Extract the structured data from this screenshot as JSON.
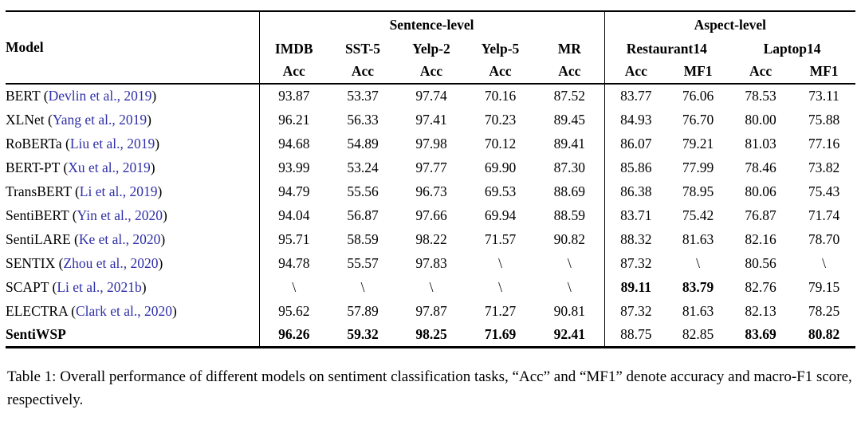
{
  "colors": {
    "background": "#ffffff",
    "text": "#000000",
    "citation_link": "#2f2fa8"
  },
  "table": {
    "header": {
      "model": "Model",
      "groups": [
        {
          "label": "Sentence-level",
          "span": 5
        },
        {
          "label": "Aspect-level",
          "span": 4
        }
      ],
      "datasets": [
        {
          "label": "IMDB",
          "span": 1
        },
        {
          "label": "SST-5",
          "span": 1
        },
        {
          "label": "Yelp-2",
          "span": 1
        },
        {
          "label": "Yelp-5",
          "span": 1
        },
        {
          "label": "MR",
          "span": 1
        },
        {
          "label": "Restaurant14",
          "span": 2
        },
        {
          "label": "Laptop14",
          "span": 2
        }
      ],
      "metrics": [
        "Acc",
        "Acc",
        "Acc",
        "Acc",
        "Acc",
        "Acc",
        "MF1",
        "Acc",
        "MF1"
      ]
    },
    "rows": [
      {
        "model": "BERT",
        "model_bold": false,
        "citation": "Devlin et al., 2019",
        "values": [
          "93.87",
          "53.37",
          "97.74",
          "70.16",
          "87.52",
          "83.77",
          "76.06",
          "78.53",
          "73.11"
        ],
        "bold": [
          false,
          false,
          false,
          false,
          false,
          false,
          false,
          false,
          false
        ]
      },
      {
        "model": "XLNet",
        "model_bold": false,
        "citation": "Yang et al., 2019",
        "values": [
          "96.21",
          "56.33",
          "97.41",
          "70.23",
          "89.45",
          "84.93",
          "76.70",
          "80.00",
          "75.88"
        ],
        "bold": [
          false,
          false,
          false,
          false,
          false,
          false,
          false,
          false,
          false
        ]
      },
      {
        "model": "RoBERTa",
        "model_bold": false,
        "citation": "Liu et al., 2019",
        "values": [
          "94.68",
          "54.89",
          "97.98",
          "70.12",
          "89.41",
          "86.07",
          "79.21",
          "81.03",
          "77.16"
        ],
        "bold": [
          false,
          false,
          false,
          false,
          false,
          false,
          false,
          false,
          false
        ]
      },
      {
        "model": "BERT-PT",
        "model_bold": false,
        "citation": "Xu et al., 2019",
        "values": [
          "93.99",
          "53.24",
          "97.77",
          "69.90",
          "87.30",
          "85.86",
          "77.99",
          "78.46",
          "73.82"
        ],
        "bold": [
          false,
          false,
          false,
          false,
          false,
          false,
          false,
          false,
          false
        ]
      },
      {
        "model": "TransBERT",
        "model_bold": false,
        "citation": "Li et al., 2019",
        "values": [
          "94.79",
          "55.56",
          "96.73",
          "69.53",
          "88.69",
          "86.38",
          "78.95",
          "80.06",
          "75.43"
        ],
        "bold": [
          false,
          false,
          false,
          false,
          false,
          false,
          false,
          false,
          false
        ]
      },
      {
        "model": "SentiBERT",
        "model_bold": false,
        "citation": "Yin et al., 2020",
        "values": [
          "94.04",
          "56.87",
          "97.66",
          "69.94",
          "88.59",
          "83.71",
          "75.42",
          "76.87",
          "71.74"
        ],
        "bold": [
          false,
          false,
          false,
          false,
          false,
          false,
          false,
          false,
          false
        ]
      },
      {
        "model": "SentiLARE",
        "model_bold": false,
        "citation": "Ke et al., 2020",
        "values": [
          "95.71",
          "58.59",
          "98.22",
          "71.57",
          "90.82",
          "88.32",
          "81.63",
          "82.16",
          "78.70"
        ],
        "bold": [
          false,
          false,
          false,
          false,
          false,
          false,
          false,
          false,
          false
        ]
      },
      {
        "model": "SENTIX",
        "model_bold": false,
        "citation": "Zhou et al., 2020",
        "values": [
          "94.78",
          "55.57",
          "97.83",
          "\\",
          "\\",
          "87.32",
          "\\",
          "80.56",
          "\\"
        ],
        "bold": [
          false,
          false,
          false,
          false,
          false,
          false,
          false,
          false,
          false
        ]
      },
      {
        "model": "SCAPT",
        "model_bold": false,
        "citation": "Li et al., 2021b",
        "values": [
          "\\",
          "\\",
          "\\",
          "\\",
          "\\",
          "89.11",
          "83.79",
          "82.76",
          "79.15"
        ],
        "bold": [
          false,
          false,
          false,
          false,
          false,
          true,
          true,
          false,
          false
        ]
      },
      {
        "model": "ELECTRA",
        "model_bold": false,
        "citation": "Clark et al., 2020",
        "values": [
          "95.62",
          "57.89",
          "97.87",
          "71.27",
          "90.81",
          "87.32",
          "81.63",
          "82.13",
          "78.25"
        ],
        "bold": [
          false,
          false,
          false,
          false,
          false,
          false,
          false,
          false,
          false
        ]
      },
      {
        "model": "SentiWSP",
        "model_bold": true,
        "citation": "",
        "values": [
          "96.26",
          "59.32",
          "98.25",
          "71.69",
          "92.41",
          "88.75",
          "82.85",
          "83.69",
          "80.82"
        ],
        "bold": [
          true,
          true,
          true,
          true,
          true,
          false,
          false,
          true,
          true
        ]
      }
    ]
  },
  "caption": {
    "text": "Table 1: Overall performance of different models on sentiment classification tasks, “Acc” and “MF1” denote accuracy and macro-F1 score, respectively."
  }
}
